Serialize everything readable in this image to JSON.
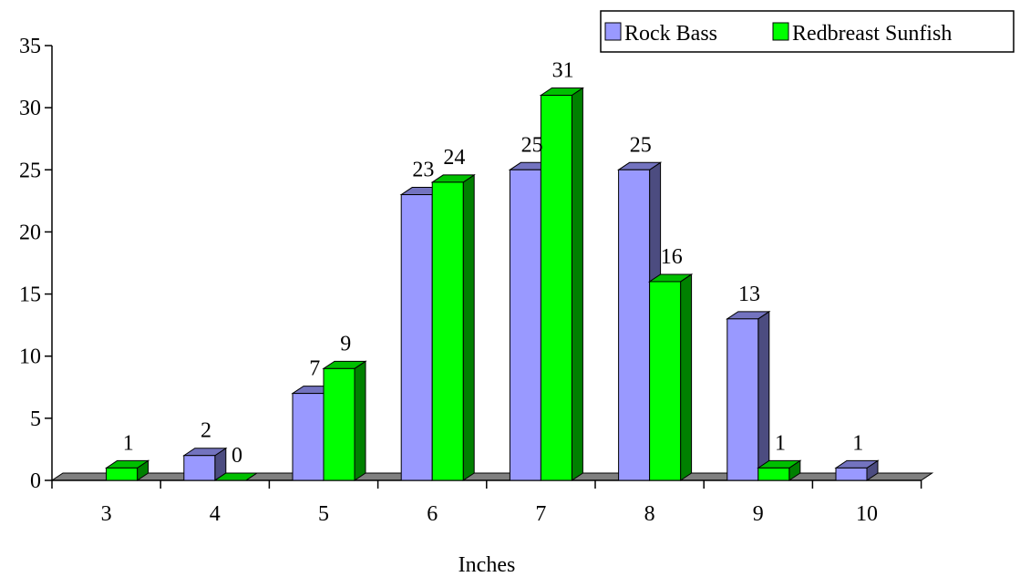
{
  "chart_data": {
    "type": "bar",
    "title": "",
    "xlabel": "Inches",
    "ylabel": "",
    "categories": [
      "3",
      "4",
      "5",
      "6",
      "7",
      "8",
      "9",
      "10"
    ],
    "series": [
      {
        "name": "Rock Bass",
        "color": "#9999ff",
        "side_color": "#4c4c80",
        "top_color": "#7373bf",
        "values": [
          null,
          2,
          7,
          23,
          25,
          25,
          13,
          1
        ]
      },
      {
        "name": "Redbreast Sunfish",
        "color": "#00ff00",
        "side_color": "#008000",
        "top_color": "#00bf00",
        "values": [
          1,
          0,
          9,
          24,
          31,
          16,
          1,
          null
        ]
      }
    ],
    "ylim": [
      0,
      35
    ],
    "yticks": [
      0,
      5,
      10,
      15,
      20,
      25,
      30,
      35
    ],
    "grid": false,
    "three_d": true,
    "floor_color": "#808080",
    "legend_position": "top-right"
  }
}
